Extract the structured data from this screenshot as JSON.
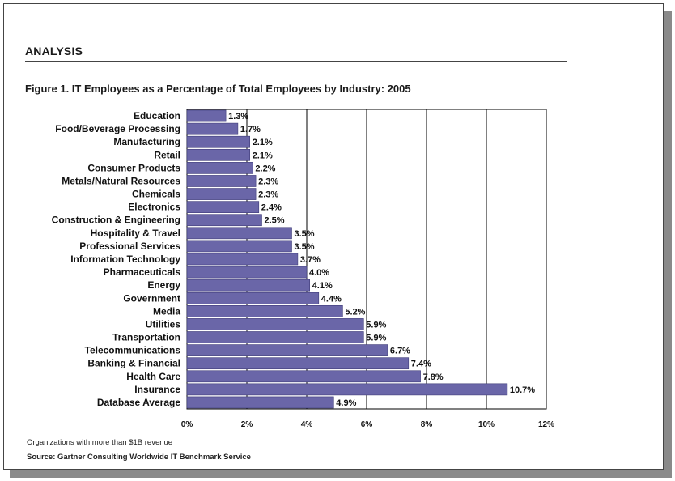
{
  "section": {
    "title": "ANALYSIS"
  },
  "chart_data": {
    "type": "bar",
    "orientation": "horizontal",
    "title": "Figure 1. IT Employees as a Percentage of Total Employees by Industry: 2005",
    "categories": [
      "Education",
      "Food/Beverage Processing",
      "Manufacturing",
      "Retail",
      "Consumer Products",
      "Metals/Natural Resources",
      "Chemicals",
      "Electronics",
      "Construction & Engineering",
      "Hospitality & Travel",
      "Professional Services",
      "Information Technology",
      "Pharmaceuticals",
      "Energy",
      "Government",
      "Media",
      "Utilities",
      "Transportation",
      "Telecommunications",
      "Banking & Financial",
      "Health Care",
      "Insurance",
      "Database Average"
    ],
    "values": [
      1.3,
      1.7,
      2.1,
      2.1,
      2.2,
      2.3,
      2.3,
      2.4,
      2.5,
      3.5,
      3.5,
      3.7,
      4.0,
      4.1,
      4.4,
      5.2,
      5.9,
      5.9,
      6.7,
      7.4,
      7.8,
      10.7,
      4.9
    ],
    "labels": [
      "1.3%",
      "1.7%",
      "2.1%",
      "2.1%",
      "2.2%",
      "2.3%",
      "2.3%",
      "2.4%",
      "2.5%",
      "3.5%",
      "3.5%",
      "3.7%",
      "4.0%",
      "4.1%",
      "4.4%",
      "5.2%",
      "5.9%",
      "5.9%",
      "6.7%",
      "7.4%",
      "7.8%",
      "10.7%",
      "4.9%"
    ],
    "xlim": [
      0,
      12
    ],
    "xticks": [
      0,
      2,
      4,
      6,
      8,
      10,
      12
    ],
    "xtick_labels": [
      "0%",
      "2%",
      "4%",
      "6%",
      "8%",
      "10%",
      "12%"
    ],
    "xlabel": "",
    "ylabel": "",
    "grid": "vertical",
    "legend": "none",
    "colors": {
      "bar": "#6a66a8",
      "bar_edge": "#3f3c78",
      "grid": "#000000",
      "frame": "#000000"
    }
  },
  "notes": {
    "footnote": "Organizations with more than $1B revenue",
    "source": "Source: Gartner Consulting Worldwide IT Benchmark Service"
  }
}
